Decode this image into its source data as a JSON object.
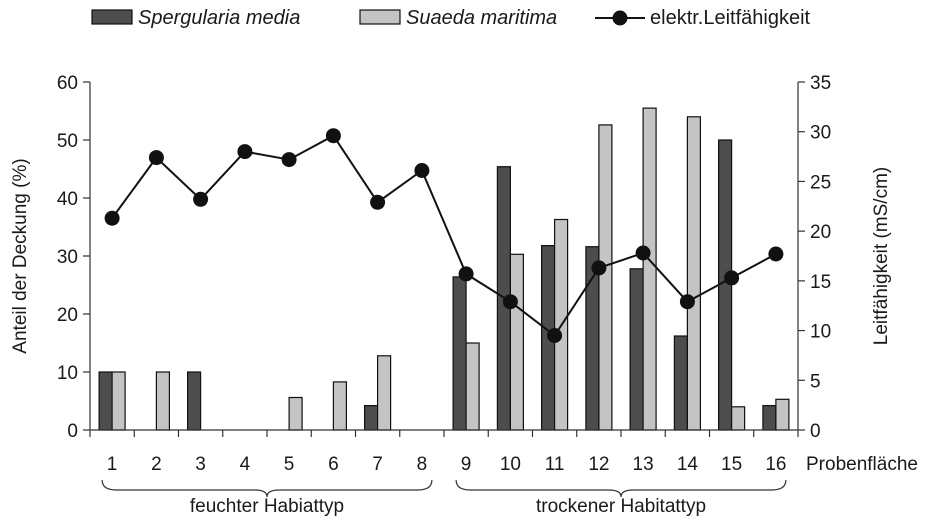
{
  "chart_data": {
    "type": "bar",
    "categories": [
      "1",
      "2",
      "3",
      "4",
      "5",
      "6",
      "7",
      "8",
      "9",
      "10",
      "11",
      "12",
      "13",
      "14",
      "15",
      "16"
    ],
    "xlabel": "Probenfläche",
    "ylabel": "Anteil der Deckung (%)",
    "y2label": "Leitfähigkeit (mS/cm)",
    "ylim": [
      0,
      60
    ],
    "y2lim": [
      0,
      35
    ],
    "yticks": [
      0,
      10,
      20,
      30,
      40,
      50,
      60
    ],
    "y2ticks": [
      0,
      5,
      10,
      15,
      20,
      25,
      30,
      35
    ],
    "series": [
      {
        "name": "Spergularia media",
        "type": "bar",
        "axis": "left",
        "color": "#4d4d4d",
        "values": [
          10,
          0,
          10,
          0,
          0,
          0,
          4.2,
          0,
          26.4,
          45.4,
          31.8,
          31.6,
          27.8,
          16.2,
          50,
          4.2
        ]
      },
      {
        "name": "Suaeda maritima",
        "type": "bar",
        "axis": "left",
        "color": "#c4c4c4",
        "values": [
          10,
          10,
          0,
          0,
          5.6,
          8.3,
          12.8,
          0,
          15,
          30.3,
          36.3,
          52.6,
          55.5,
          54,
          4,
          5.3
        ]
      },
      {
        "name": "elektr.Leitfähigkeit",
        "type": "line",
        "axis": "right",
        "color": "#111111",
        "values": [
          21.3,
          27.4,
          23.2,
          28,
          27.2,
          29.6,
          22.9,
          26.1,
          15.7,
          12.9,
          9.5,
          16.3,
          17.8,
          12.9,
          15.3,
          17.7
        ]
      }
    ],
    "groups": [
      {
        "label": "feuchter Habiattyp",
        "from": 1,
        "to": 8
      },
      {
        "label": "trockener Habitattyp",
        "from": 9,
        "to": 16
      }
    ],
    "legend_position": "top",
    "grid": false
  }
}
